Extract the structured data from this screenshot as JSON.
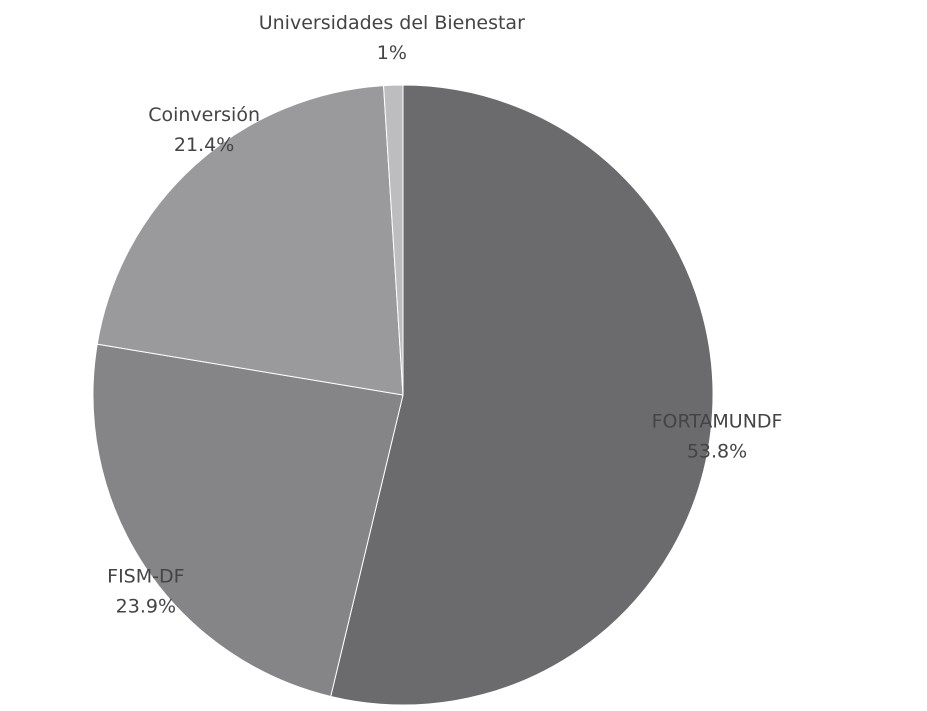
{
  "chart_data": {
    "type": "pie",
    "categories": [
      "FORTAMUNDF",
      "FISM-DF",
      "Coinversión",
      "Universidades del Bienestar"
    ],
    "values": [
      53.8,
      23.9,
      21.4,
      1
    ],
    "value_labels": [
      "53.8%",
      "23.9%",
      "21.4%",
      "1%"
    ],
    "colors": [
      "#6b6b6d",
      "#858587",
      "#9a9a9c",
      "#bdbdbf"
    ]
  }
}
